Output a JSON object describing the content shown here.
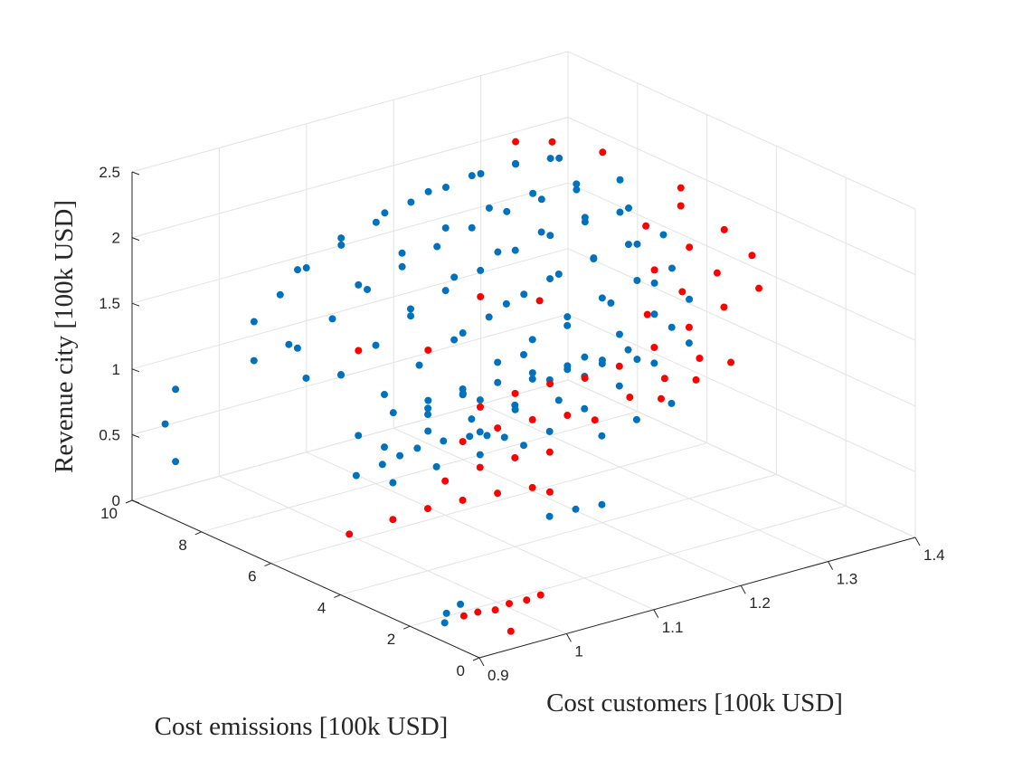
{
  "chart_data": {
    "type": "scatter3d",
    "title": "",
    "xlabel": "Cost customers [100k USD]",
    "ylabel": "Cost emissions [100k USD]",
    "zlabel": "Revenue city [100k USD]",
    "xlim": [
      0.9,
      1.4
    ],
    "ylim": [
      0,
      10
    ],
    "zlim": [
      0,
      2.5
    ],
    "xticks": [
      "0.9",
      "1",
      "1.1",
      "1.2",
      "1.3",
      "1.4"
    ],
    "yticks": [
      "0",
      "2",
      "4",
      "6",
      "8",
      "10"
    ],
    "zticks": [
      "0",
      "0.5",
      "1",
      "1.5",
      "2",
      "2.5"
    ],
    "grid": true,
    "legend": "none",
    "colors": {
      "series_blue": "#0072bd",
      "series_red": "#ff0000"
    },
    "series": [
      {
        "color": "#0072bd",
        "points": [
          [
            0.92,
            1.5,
            0.05
          ],
          [
            0.93,
            1.7,
            0.08
          ],
          [
            0.95,
            1.8,
            0.1
          ],
          [
            0.95,
            4.8,
            0.72
          ],
          [
            0.98,
            4.8,
            0.75
          ],
          [
            1.0,
            4.8,
            0.78
          ],
          [
            1.02,
            4.8,
            0.8
          ],
          [
            1.05,
            4.8,
            0.8
          ],
          [
            1.08,
            4.8,
            0.78
          ],
          [
            1.1,
            4.8,
            0.75
          ],
          [
            1.12,
            4.8,
            0.7
          ],
          [
            1.0,
            5.0,
            0.55
          ],
          [
            1.05,
            5.0,
            0.58
          ],
          [
            1.1,
            5.0,
            0.58
          ],
          [
            1.15,
            5.0,
            0.56
          ],
          [
            1.1,
            3.0,
            0.35
          ],
          [
            1.13,
            3.0,
            0.35
          ],
          [
            1.16,
            3.0,
            0.33
          ],
          [
            1.05,
            6.5,
            0.55
          ],
          [
            1.1,
            6.5,
            0.58
          ],
          [
            1.15,
            6.5,
            0.58
          ],
          [
            1.2,
            6.5,
            0.56
          ],
          [
            1.25,
            6.5,
            0.54
          ],
          [
            1.08,
            6.0,
            0.85
          ],
          [
            1.12,
            6.0,
            0.88
          ],
          [
            1.16,
            6.0,
            0.9
          ],
          [
            1.2,
            6.0,
            0.9
          ],
          [
            1.24,
            6.0,
            0.88
          ],
          [
            1.28,
            6.0,
            0.85
          ],
          [
            1.12,
            5.5,
            0.9
          ],
          [
            1.18,
            5.5,
            0.95
          ],
          [
            1.22,
            5.5,
            0.95
          ],
          [
            1.26,
            5.5,
            0.92
          ],
          [
            1.3,
            5.5,
            0.88
          ],
          [
            1.06,
            7.5,
            0.5
          ],
          [
            1.1,
            7.5,
            0.6
          ],
          [
            1.14,
            7.5,
            0.62
          ],
          [
            1.18,
            7.5,
            0.6
          ],
          [
            0.93,
            9.5,
            0.85
          ],
          [
            0.93,
            9.8,
            0.55
          ],
          [
            0.93,
            9.5,
            0.3
          ],
          [
            1.02,
            9.5,
            1.2
          ],
          [
            1.05,
            9.5,
            1.35
          ],
          [
            1.08,
            9.5,
            1.5
          ],
          [
            1.12,
            9.5,
            1.6
          ],
          [
            1.16,
            9.5,
            1.7
          ],
          [
            1.2,
            9.5,
            1.78
          ],
          [
            1.24,
            9.5,
            1.82
          ],
          [
            1.28,
            9.5,
            1.85
          ],
          [
            1.32,
            9.5,
            1.85
          ],
          [
            1.36,
            9.5,
            1.82
          ],
          [
            1.03,
            8.5,
            1.1
          ],
          [
            1.07,
            8.5,
            1.25
          ],
          [
            1.11,
            8.5,
            1.4
          ],
          [
            1.15,
            8.5,
            1.5
          ],
          [
            1.19,
            8.5,
            1.58
          ],
          [
            1.23,
            8.5,
            1.65
          ],
          [
            1.27,
            8.5,
            1.7
          ],
          [
            1.31,
            8.5,
            1.72
          ],
          [
            1.35,
            8.5,
            1.72
          ],
          [
            1.04,
            7.5,
            1.0
          ],
          [
            1.08,
            7.5,
            1.15
          ],
          [
            1.12,
            7.5,
            1.3
          ],
          [
            1.16,
            7.5,
            1.42
          ],
          [
            1.2,
            7.5,
            1.5
          ],
          [
            1.24,
            7.5,
            1.58
          ],
          [
            1.28,
            7.5,
            1.62
          ],
          [
            1.32,
            7.5,
            1.65
          ],
          [
            1.36,
            7.5,
            1.65
          ],
          [
            1.05,
            6.5,
            0.95
          ],
          [
            1.09,
            6.5,
            1.1
          ],
          [
            1.13,
            6.5,
            1.22
          ],
          [
            1.17,
            6.5,
            1.32
          ],
          [
            1.21,
            6.5,
            1.42
          ],
          [
            1.25,
            6.5,
            1.5
          ],
          [
            1.29,
            6.5,
            1.55
          ],
          [
            1.33,
            6.5,
            1.58
          ],
          [
            1.37,
            6.5,
            1.58
          ],
          [
            1.06,
            5.5,
            0.9
          ],
          [
            1.1,
            5.5,
            1.02
          ],
          [
            1.14,
            5.5,
            1.15
          ],
          [
            1.18,
            5.5,
            1.25
          ],
          [
            1.22,
            5.5,
            1.35
          ],
          [
            1.26,
            5.5,
            1.42
          ],
          [
            1.3,
            5.5,
            1.48
          ],
          [
            1.34,
            5.5,
            1.5
          ],
          [
            1.08,
            4.5,
            0.85
          ],
          [
            1.12,
            4.5,
            0.98
          ],
          [
            1.16,
            4.5,
            1.1
          ],
          [
            1.2,
            4.5,
            1.2
          ],
          [
            1.24,
            4.5,
            1.3
          ],
          [
            1.28,
            4.5,
            1.38
          ],
          [
            1.32,
            4.5,
            1.42
          ],
          [
            1.12,
            3.5,
            0.9
          ],
          [
            1.16,
            3.5,
            1.0
          ],
          [
            1.2,
            3.5,
            1.1
          ],
          [
            1.24,
            3.5,
            1.2
          ],
          [
            1.28,
            3.5,
            1.28
          ],
          [
            1.05,
            9.0,
            1.6
          ],
          [
            1.1,
            9.0,
            1.75
          ],
          [
            1.15,
            9.0,
            1.85
          ],
          [
            1.2,
            9.0,
            1.92
          ],
          [
            1.25,
            9.0,
            1.95
          ],
          [
            1.3,
            9.0,
            1.95
          ],
          [
            1.35,
            9.0,
            1.9
          ],
          [
            1.08,
            8.0,
            1.55
          ],
          [
            1.13,
            8.0,
            1.7
          ],
          [
            1.18,
            8.0,
            1.8
          ],
          [
            1.23,
            8.0,
            1.86
          ],
          [
            1.28,
            8.0,
            1.88
          ],
          [
            1.33,
            8.0,
            1.86
          ],
          [
            1.38,
            8.0,
            1.8
          ],
          [
            1.1,
            7.0,
            1.45
          ],
          [
            1.15,
            7.0,
            1.6
          ],
          [
            1.2,
            7.0,
            1.7
          ],
          [
            1.25,
            7.0,
            1.76
          ],
          [
            1.3,
            7.0,
            1.78
          ],
          [
            1.35,
            7.0,
            1.76
          ],
          [
            1.12,
            6.0,
            1.35
          ],
          [
            1.17,
            6.0,
            1.48
          ],
          [
            1.22,
            6.0,
            1.58
          ],
          [
            1.27,
            6.0,
            1.64
          ],
          [
            1.32,
            6.0,
            1.66
          ],
          [
            1.15,
            5.0,
            1.25
          ],
          [
            1.2,
            5.0,
            1.38
          ],
          [
            1.25,
            5.0,
            1.46
          ],
          [
            1.3,
            5.0,
            1.52
          ],
          [
            1.18,
            4.0,
            1.15
          ],
          [
            1.23,
            4.0,
            1.26
          ],
          [
            1.28,
            4.0,
            1.34
          ],
          [
            1.02,
            8.0,
            0.95
          ],
          [
            1.06,
            8.0,
            0.9
          ],
          [
            1.0,
            9.0,
            1.0
          ],
          [
            1.04,
            9.0,
            1.05
          ],
          [
            1.14,
            2.5,
            0.95
          ],
          [
            1.18,
            2.5,
            1.0
          ],
          [
            1.22,
            2.5,
            1.05
          ]
        ]
      },
      {
        "color": "#ff0000",
        "points": [
          [
            0.93,
            1.2,
            0.12
          ],
          [
            0.95,
            1.3,
            0.1
          ],
          [
            0.97,
            1.3,
            0.08
          ],
          [
            0.99,
            1.4,
            0.08
          ],
          [
            1.01,
            1.4,
            0.07
          ],
          [
            1.03,
            1.5,
            0.06
          ],
          [
            0.96,
            0.6,
            0.02
          ],
          [
            0.95,
            5.0,
            0.25
          ],
          [
            1.0,
            5.0,
            0.27
          ],
          [
            1.04,
            5.0,
            0.28
          ],
          [
            1.08,
            5.0,
            0.27
          ],
          [
            1.12,
            5.0,
            0.25
          ],
          [
            1.16,
            5.0,
            0.22
          ],
          [
            1.18,
            5.0,
            0.15
          ],
          [
            1.04,
            4.5,
            0.55
          ],
          [
            1.08,
            4.5,
            0.58
          ],
          [
            1.12,
            4.5,
            0.58
          ],
          [
            1.16,
            4.5,
            0.55
          ],
          [
            1.1,
            5.5,
            0.62
          ],
          [
            1.14,
            5.5,
            0.65
          ],
          [
            1.18,
            5.5,
            0.64
          ],
          [
            1.22,
            5.5,
            0.6
          ],
          [
            1.14,
            6.0,
            0.75
          ],
          [
            1.18,
            6.0,
            0.78
          ],
          [
            1.22,
            6.0,
            0.78
          ],
          [
            1.26,
            6.0,
            0.75
          ],
          [
            1.16,
            3.2,
            0.95
          ],
          [
            1.2,
            3.2,
            1.05
          ],
          [
            1.24,
            3.2,
            1.12
          ],
          [
            1.28,
            3.2,
            1.2
          ],
          [
            1.2,
            3.5,
            1.25
          ],
          [
            1.24,
            3.5,
            1.32
          ],
          [
            1.28,
            3.5,
            1.4
          ],
          [
            1.32,
            3.5,
            1.48
          ],
          [
            1.36,
            3.5,
            1.55
          ],
          [
            1.26,
            4.2,
            1.45
          ],
          [
            1.3,
            4.2,
            1.55
          ],
          [
            1.34,
            4.2,
            1.62
          ],
          [
            1.38,
            4.2,
            1.68
          ],
          [
            1.3,
            5.0,
            1.62
          ],
          [
            1.34,
            5.0,
            1.72
          ],
          [
            1.38,
            5.0,
            1.78
          ],
          [
            1.33,
            6.0,
            1.78
          ],
          [
            1.37,
            6.0,
            1.86
          ],
          [
            1.39,
            6.5,
            1.9
          ],
          [
            1.22,
            2.8,
            1.05
          ],
          [
            1.26,
            2.8,
            1.12
          ],
          [
            1.3,
            2.8,
            1.18
          ],
          [
            1.08,
            8.0,
            1.05
          ],
          [
            1.12,
            7.0,
            1.1
          ],
          [
            1.2,
            7.5,
            1.3
          ],
          [
            1.24,
            6.8,
            1.28
          ],
          [
            1.32,
            9.5,
            2.02
          ],
          [
            1.35,
            9.2,
            2.0
          ],
          [
            1.38,
            8.5,
            1.95
          ]
        ]
      }
    ]
  }
}
